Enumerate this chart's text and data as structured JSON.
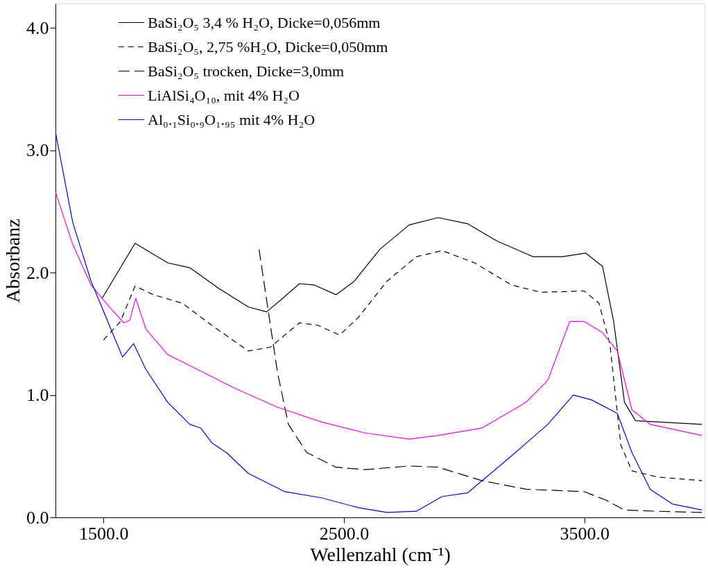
{
  "chart_data": {
    "type": "line",
    "xlabel": "Wellenzahl (cm⁻¹)",
    "ylabel": "Absorbanz",
    "xlim": [
      1300,
      4000
    ],
    "ylim": [
      0,
      4.2
    ],
    "xticks": [
      {
        "value": 1500,
        "label": "1500.0"
      },
      {
        "value": 2500,
        "label": "2500.0"
      },
      {
        "value": 3500,
        "label": "3500.0"
      }
    ],
    "yticks": [
      {
        "value": 0,
        "label": "0.0"
      },
      {
        "value": 1,
        "label": "1.0"
      },
      {
        "value": 2,
        "label": "2.0"
      },
      {
        "value": 3,
        "label": "3.0"
      },
      {
        "value": 4,
        "label": "4.0"
      }
    ],
    "grid": false,
    "legend": "top",
    "marker": "none",
    "series": [
      {
        "name": "BaSi₂O₅ 3,4 % H₂O, Dicke=0,056mm",
        "color": "#000000",
        "line_style": "solid",
        "x": [
          1494,
          1631,
          1767,
          1859,
          1980,
          2102,
          2178,
          2239,
          2315,
          2375,
          2467,
          2543,
          2649,
          2771,
          2892,
          3014,
          3135,
          3287,
          3409,
          3506,
          3576,
          3622,
          3667,
          3713,
          3804,
          3989
        ],
        "values": [
          1.79,
          2.24,
          2.08,
          2.04,
          1.87,
          1.72,
          1.68,
          1.78,
          1.91,
          1.9,
          1.82,
          1.93,
          2.19,
          2.39,
          2.45,
          2.4,
          2.26,
          2.13,
          2.13,
          2.16,
          2.05,
          1.6,
          0.94,
          0.79,
          0.78,
          0.76
        ]
      },
      {
        "name": "BaSi₂O₅, 2,75 %H₂O, Dicke=0,050mm",
        "color": "#000000",
        "line_style": "dashed",
        "x": [
          1500,
          1570,
          1631,
          1707,
          1828,
          1950,
          2102,
          2193,
          2315,
          2391,
          2482,
          2558,
          2679,
          2801,
          2908,
          3044,
          3196,
          3318,
          3500,
          3561,
          3606,
          3652,
          3698,
          3804,
          3989
        ],
        "values": [
          1.45,
          1.6,
          1.89,
          1.82,
          1.75,
          1.57,
          1.36,
          1.39,
          1.59,
          1.57,
          1.49,
          1.63,
          1.93,
          2.13,
          2.18,
          2.08,
          1.9,
          1.84,
          1.85,
          1.75,
          1.42,
          0.59,
          0.38,
          0.33,
          0.3
        ]
      },
      {
        "name": "BaSi₂O₅ trocken, Dicke=3,0mm",
        "color": "#000000",
        "line_style": "longdash",
        "x": [
          2147,
          2178,
          2224,
          2269,
          2345,
          2467,
          2588,
          2771,
          2892,
          3074,
          3257,
          3500,
          3591,
          3667,
          3804,
          3989
        ],
        "values": [
          2.19,
          1.78,
          1.18,
          0.76,
          0.53,
          0.41,
          0.39,
          0.42,
          0.41,
          0.3,
          0.23,
          0.21,
          0.14,
          0.06,
          0.05,
          0.04
        ]
      },
      {
        "name": "LiAlSi₄O₁₀, mit 4% H₂O",
        "color": "#ff00ff",
        "line_style": "solid",
        "x": [
          1300,
          1372,
          1448,
          1524,
          1585,
          1609,
          1634,
          1676,
          1767,
          1889,
          2041,
          2224,
          2406,
          2588,
          2771,
          2892,
          3074,
          3257,
          3348,
          3439,
          3500,
          3576,
          3637,
          3698,
          3774,
          3989
        ],
        "values": [
          2.66,
          2.23,
          1.9,
          1.72,
          1.59,
          1.61,
          1.79,
          1.54,
          1.33,
          1.21,
          1.06,
          0.9,
          0.78,
          0.69,
          0.64,
          0.67,
          0.73,
          0.94,
          1.12,
          1.6,
          1.6,
          1.51,
          1.36,
          0.88,
          0.76,
          0.67
        ]
      },
      {
        "name": "Al₀.₁Si₀.₉O₁.₉₅ mit 4% H₂O",
        "color": "#0000ff",
        "line_style": "solid",
        "x": [
          1300,
          1372,
          1448,
          1524,
          1579,
          1625,
          1676,
          1767,
          1859,
          1904,
          1950,
          2011,
          2102,
          2254,
          2406,
          2558,
          2679,
          2801,
          2908,
          3014,
          3196,
          3348,
          3454,
          3530,
          3637,
          3698,
          3774,
          3865,
          3989
        ],
        "values": [
          3.15,
          2.41,
          1.93,
          1.57,
          1.31,
          1.42,
          1.21,
          0.94,
          0.76,
          0.73,
          0.61,
          0.53,
          0.36,
          0.21,
          0.16,
          0.08,
          0.04,
          0.05,
          0.17,
          0.2,
          0.5,
          0.76,
          1.0,
          0.96,
          0.85,
          0.53,
          0.23,
          0.11,
          0.06
        ]
      }
    ]
  }
}
